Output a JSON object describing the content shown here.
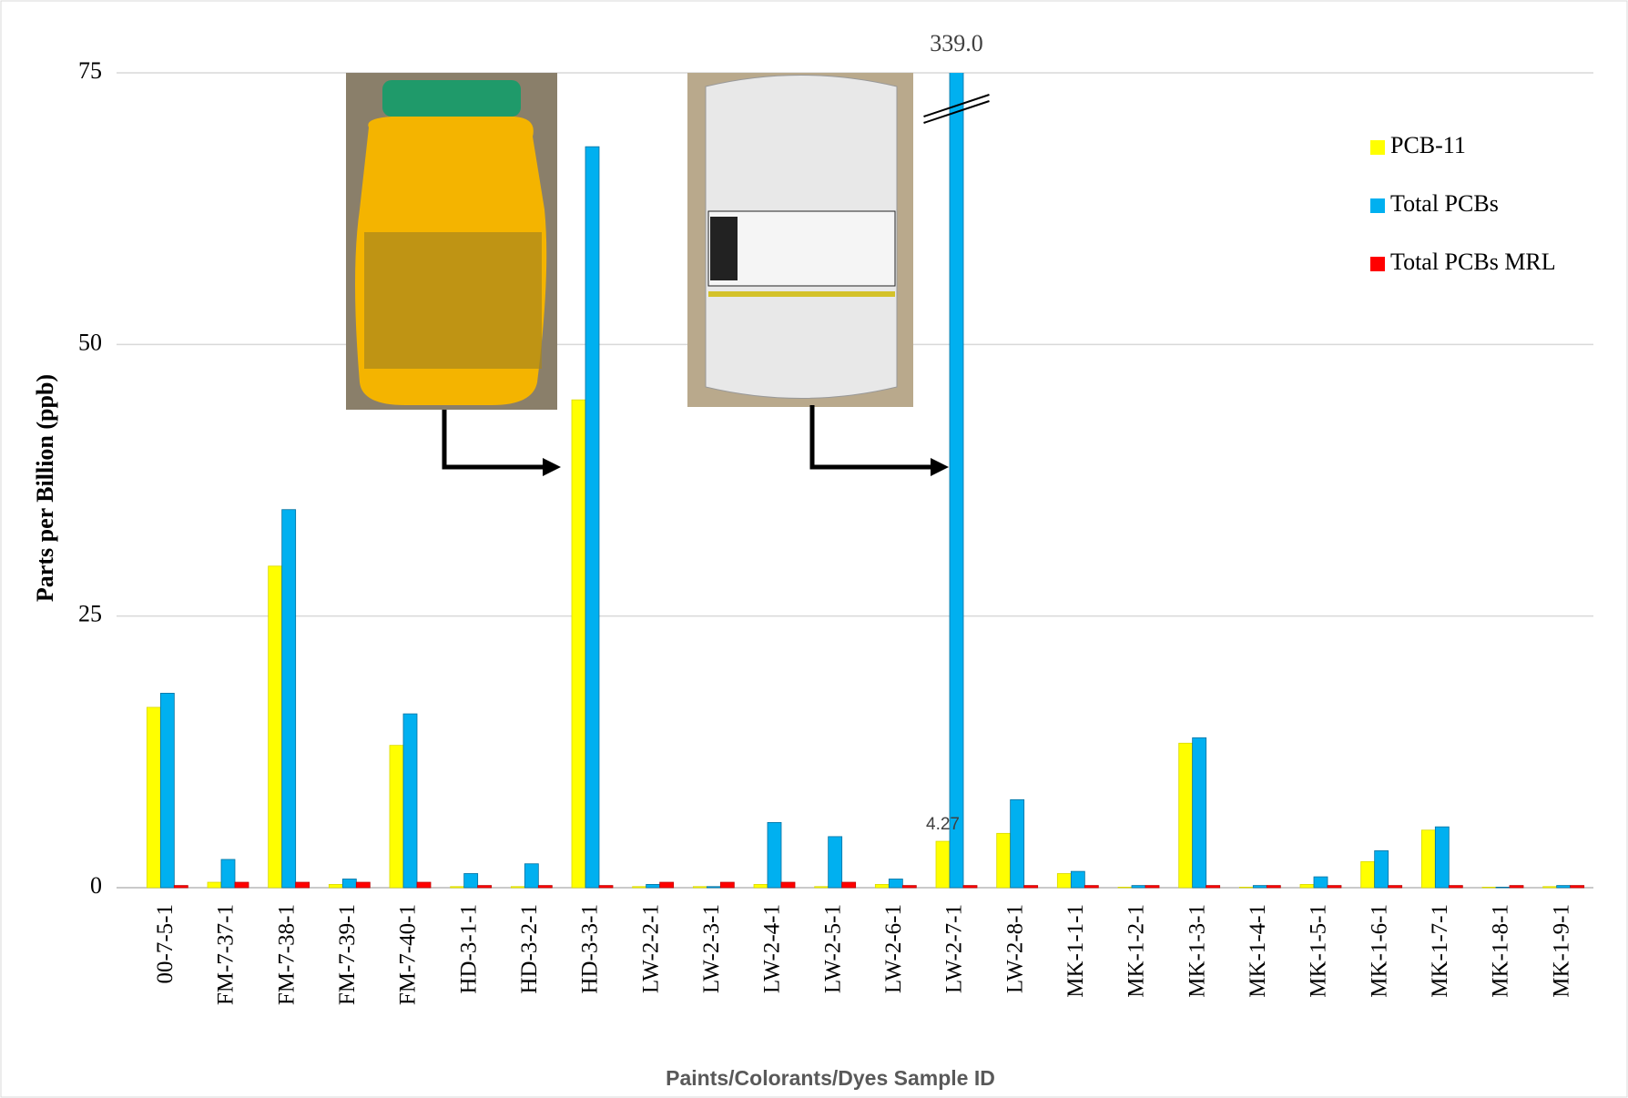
{
  "chart_data": {
    "type": "bar",
    "x_label": "Paints/Colorants/Dyes Sample ID",
    "y_label": "Parts per Billion (ppb)",
    "categories": [
      "00-7-5-1",
      "FM-7-37-1",
      "FM-7-38-1",
      "FM-7-39-1",
      "FM-7-40-1",
      "HD-3-1-1",
      "HD-3-2-1",
      "HD-3-3-1",
      "LW-2-2-1",
      "LW-2-3-1",
      "LW-2-4-1",
      "LW-2-5-1",
      "LW-2-6-1",
      "LW-2-7-1",
      "LW-2-8-1",
      "MK-1-1-1",
      "MK-1-2-1",
      "MK-1-3-1",
      "MK-1-4-1",
      "MK-1-5-1",
      "MK-1-6-1",
      "MK-1-7-1",
      "MK-1-8-1",
      "MK-1-9-1"
    ],
    "series": [
      {
        "name": "PCB-11",
        "color": "#ffff00",
        "values": [
          16.6,
          0.5,
          29.6,
          0.3,
          13.1,
          0.1,
          0.1,
          44.9,
          0.1,
          0.1,
          0.3,
          0.1,
          0.3,
          4.27,
          5.0,
          1.3,
          0.05,
          13.3,
          0.05,
          0.3,
          2.4,
          5.3,
          0.05,
          0.1
        ],
        "value_labels": [
          null,
          null,
          null,
          null,
          null,
          null,
          null,
          null,
          null,
          null,
          null,
          null,
          null,
          "4.27",
          null,
          null,
          null,
          null,
          null,
          null,
          null,
          null,
          null,
          null
        ]
      },
      {
        "name": "Total PCBs",
        "color": "#00b0f0",
        "values": [
          17.9,
          2.6,
          34.8,
          0.8,
          16.0,
          1.3,
          2.2,
          68.2,
          0.3,
          0.1,
          6.0,
          4.7,
          0.8,
          339.0,
          8.1,
          1.5,
          0.2,
          13.8,
          0.2,
          1.0,
          3.4,
          5.6,
          0.05,
          0.2
        ],
        "value_labels": [
          null,
          null,
          null,
          null,
          null,
          null,
          null,
          null,
          null,
          null,
          null,
          null,
          null,
          "339.0",
          null,
          null,
          null,
          null,
          null,
          null,
          null,
          null,
          null,
          null
        ]
      },
      {
        "name": "Total PCBs MRL",
        "color": "#ff0000",
        "values": [
          0.2,
          0.5,
          0.5,
          0.5,
          0.5,
          0.2,
          0.2,
          0.2,
          0.5,
          0.5,
          0.5,
          0.5,
          0.2,
          0.2,
          0.2,
          0.2,
          0.2,
          0.2,
          0.2,
          0.2,
          0.2,
          0.2,
          0.2,
          0.2
        ]
      }
    ],
    "ylim": [
      0,
      75
    ],
    "yticks": [
      0,
      25,
      50,
      75
    ],
    "grid": true,
    "legend": "top-right"
  }
}
